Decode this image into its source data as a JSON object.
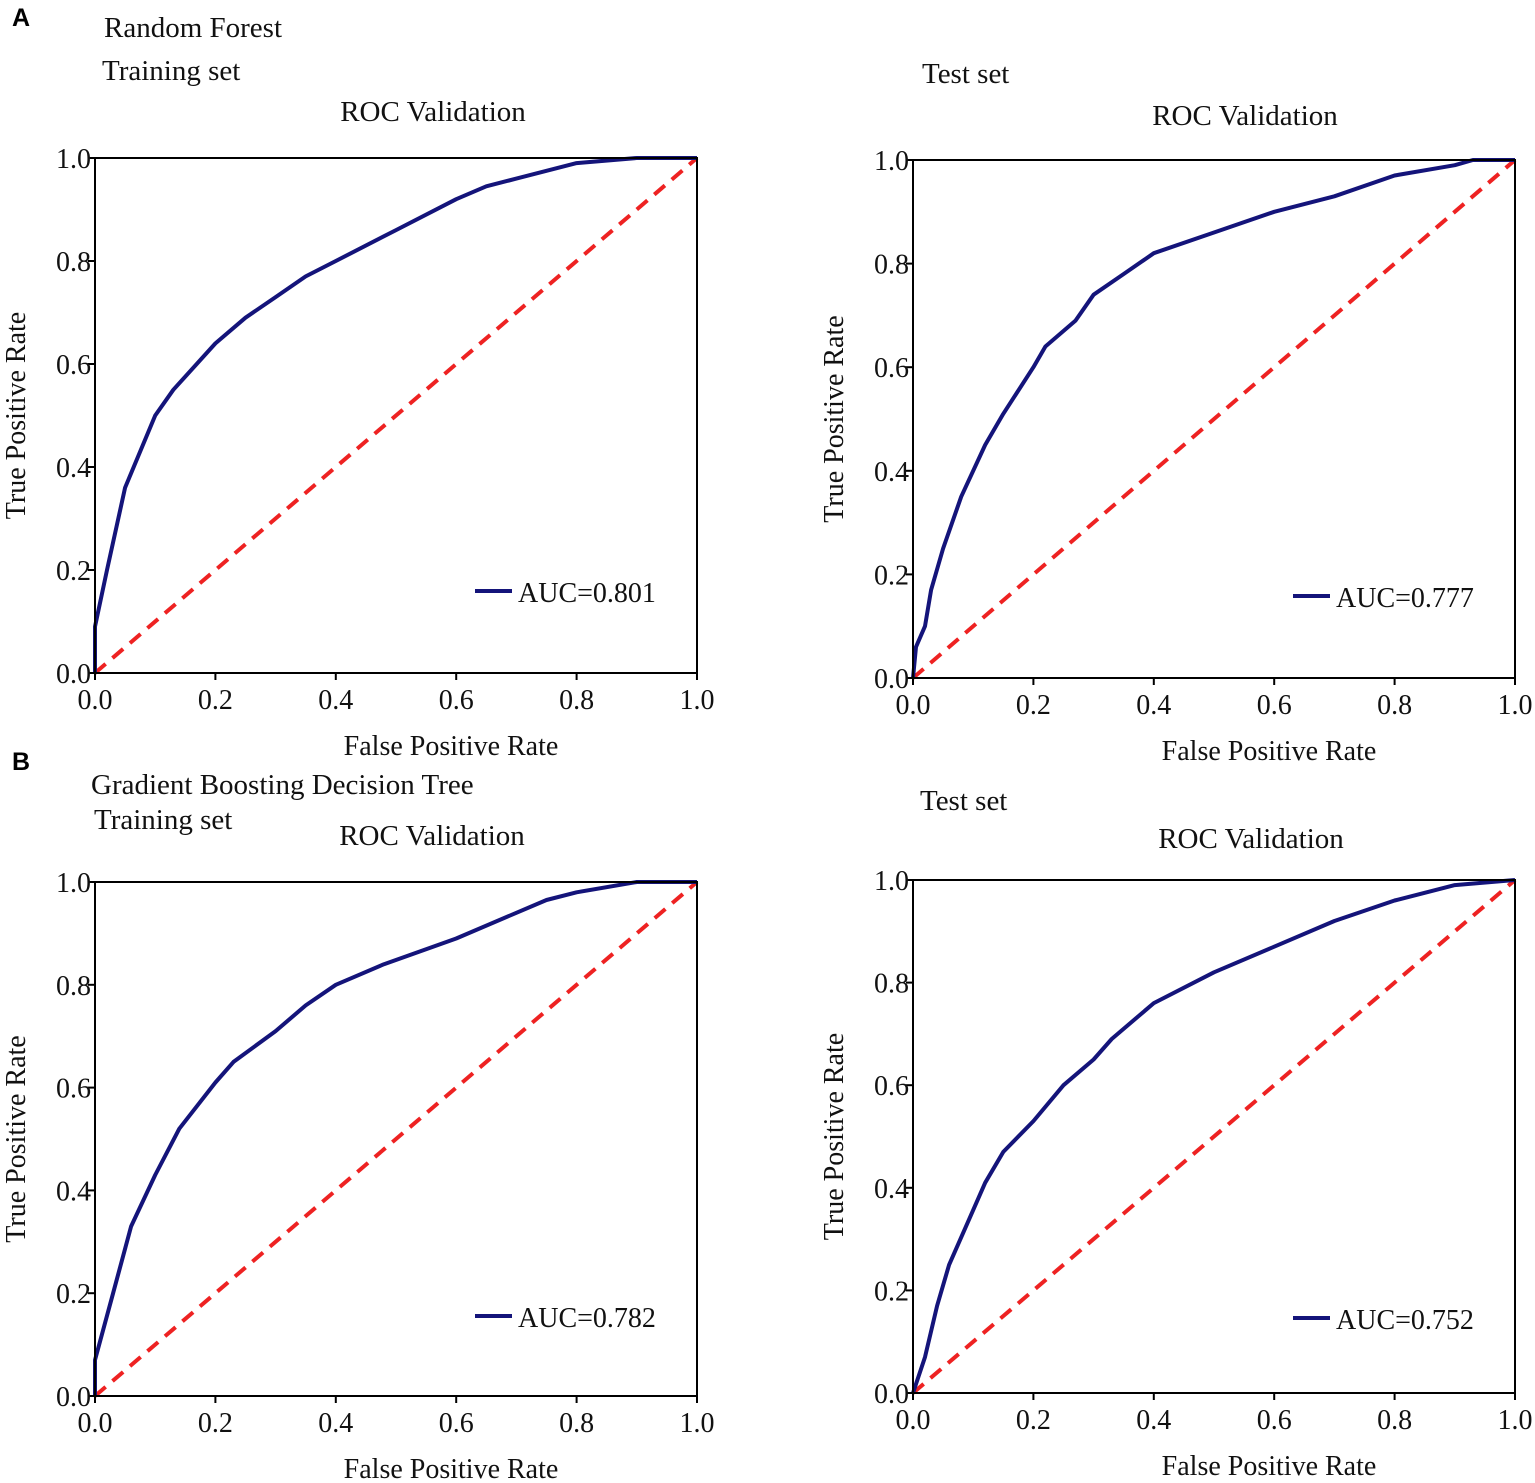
{
  "figure": {
    "panel_a_letter": "A",
    "panel_a_model": "Random Forest",
    "panel_a_train": "Training set",
    "panel_a_test": "Test set",
    "panel_b_letter": "B",
    "panel_b_model": "Gradient Boosting  Decision Tree",
    "panel_b_train": "Training set",
    "panel_b_test": "Test set"
  },
  "colors": {
    "roc": "#14147a",
    "chance": "#ee2222",
    "axis": "#000000"
  },
  "chart_data": [
    {
      "type": "line",
      "title": "ROC Validation",
      "xlabel": "False Positive Rate",
      "ylabel": "True Positive Rate",
      "xlim": [
        0,
        1
      ],
      "ylim": [
        0,
        1
      ],
      "xticks": [
        "0.0",
        "0.2",
        "0.4",
        "0.6",
        "0.8",
        "1.0"
      ],
      "yticks": [
        "0.0",
        "0.2",
        "0.4",
        "0.6",
        "0.8",
        "1.0"
      ],
      "legend": "bottom-right",
      "series": [
        {
          "name": "AUC=0.801",
          "x": [
            0,
            0,
            0.02,
            0.05,
            0.1,
            0.13,
            0.2,
            0.25,
            0.3,
            0.35,
            0.4,
            0.5,
            0.6,
            0.65,
            0.7,
            0.8,
            0.9,
            1
          ],
          "y": [
            0,
            0.09,
            0.2,
            0.36,
            0.5,
            0.55,
            0.64,
            0.69,
            0.73,
            0.77,
            0.8,
            0.86,
            0.92,
            0.945,
            0.96,
            0.99,
            1,
            1
          ]
        },
        {
          "name": "chance",
          "x": [
            0,
            1
          ],
          "y": [
            0,
            1
          ]
        }
      ]
    },
    {
      "type": "line",
      "title": "ROC Validation",
      "xlabel": "False Positive Rate",
      "ylabel": "True Positive Rate",
      "xlim": [
        0,
        1
      ],
      "ylim": [
        0,
        1
      ],
      "xticks": [
        "0.0",
        "0.2",
        "0.4",
        "0.6",
        "0.8",
        "1.0"
      ],
      "yticks": [
        "0.0",
        "0.2",
        "0.4",
        "0.6",
        "0.8",
        "1.0"
      ],
      "legend": "bottom-right",
      "series": [
        {
          "name": "AUC=0.777",
          "x": [
            0,
            0.005,
            0.02,
            0.03,
            0.05,
            0.08,
            0.12,
            0.15,
            0.2,
            0.22,
            0.27,
            0.3,
            0.35,
            0.4,
            0.5,
            0.6,
            0.7,
            0.8,
            0.9,
            0.93,
            1
          ],
          "y": [
            0,
            0.06,
            0.1,
            0.17,
            0.25,
            0.35,
            0.45,
            0.51,
            0.6,
            0.64,
            0.69,
            0.74,
            0.78,
            0.82,
            0.86,
            0.9,
            0.93,
            0.97,
            0.99,
            1,
            1
          ]
        },
        {
          "name": "chance",
          "x": [
            0,
            1
          ],
          "y": [
            0,
            1
          ]
        }
      ]
    },
    {
      "type": "line",
      "title": "ROC Validation",
      "xlabel": "False Positive Rate",
      "ylabel": "True Positive Rate",
      "xlim": [
        0,
        1
      ],
      "ylim": [
        0,
        1
      ],
      "xticks": [
        "0.0",
        "0.2",
        "0.4",
        "0.6",
        "0.8",
        "1.0"
      ],
      "yticks": [
        "0.0",
        "0.2",
        "0.4",
        "0.6",
        "0.8",
        "1.0"
      ],
      "legend": "bottom-right",
      "series": [
        {
          "name": "AUC=0.782",
          "x": [
            0,
            0,
            0.03,
            0.06,
            0.1,
            0.14,
            0.2,
            0.23,
            0.3,
            0.35,
            0.4,
            0.48,
            0.6,
            0.7,
            0.75,
            0.8,
            0.9,
            1
          ],
          "y": [
            0,
            0.07,
            0.2,
            0.33,
            0.43,
            0.52,
            0.61,
            0.65,
            0.71,
            0.76,
            0.8,
            0.84,
            0.89,
            0.94,
            0.965,
            0.98,
            1,
            1
          ]
        },
        {
          "name": "chance",
          "x": [
            0,
            1
          ],
          "y": [
            0,
            1
          ]
        }
      ]
    },
    {
      "type": "line",
      "title": "ROC Validation",
      "xlabel": "False Positive Rate",
      "ylabel": "True Positive Rate",
      "xlim": [
        0,
        1
      ],
      "ylim": [
        0,
        1
      ],
      "xticks": [
        "0.0",
        "0.2",
        "0.4",
        "0.6",
        "0.8",
        "1.0"
      ],
      "yticks": [
        "0.0",
        "0.2",
        "0.4",
        "0.6",
        "0.8",
        "1.0"
      ],
      "legend": "bottom-right",
      "series": [
        {
          "name": "AUC=0.752",
          "x": [
            0,
            0.02,
            0.04,
            0.06,
            0.09,
            0.12,
            0.15,
            0.2,
            0.25,
            0.3,
            0.33,
            0.4,
            0.5,
            0.6,
            0.7,
            0.8,
            0.9,
            1
          ],
          "y": [
            0,
            0.07,
            0.17,
            0.25,
            0.33,
            0.41,
            0.47,
            0.53,
            0.6,
            0.65,
            0.69,
            0.76,
            0.82,
            0.87,
            0.92,
            0.96,
            0.99,
            1
          ]
        },
        {
          "name": "chance",
          "x": [
            0,
            1
          ],
          "y": [
            0,
            1
          ]
        }
      ]
    }
  ]
}
